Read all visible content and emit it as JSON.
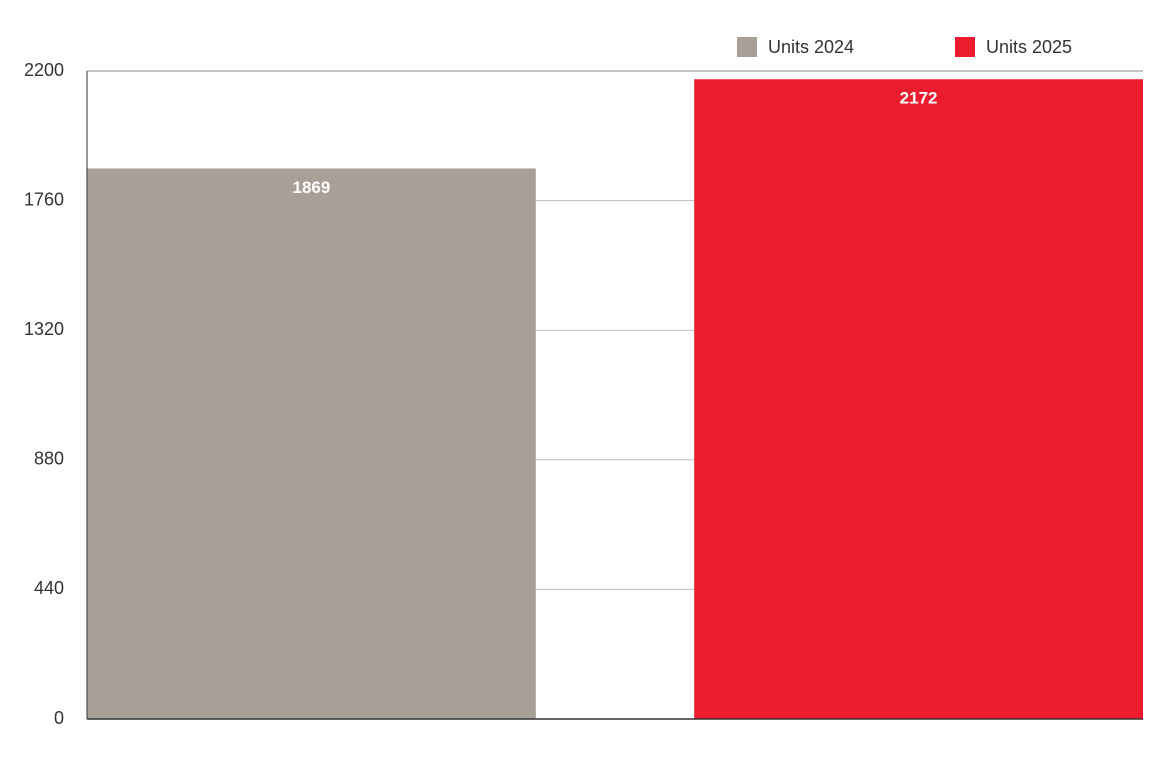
{
  "chart_data": {
    "type": "bar",
    "categories": [
      null
    ],
    "series": [
      {
        "name": "Units 2024",
        "color": "#a8a097",
        "values": [
          1869
        ]
      },
      {
        "name": "Units 2025",
        "color": "#ec1c2e",
        "values": [
          2172
        ]
      }
    ],
    "ylim": [
      0,
      2200
    ],
    "yticks": [
      0,
      440,
      880,
      1320,
      1760,
      2200
    ],
    "grid": true,
    "legend": "top-right",
    "value_labels_inside": true
  }
}
